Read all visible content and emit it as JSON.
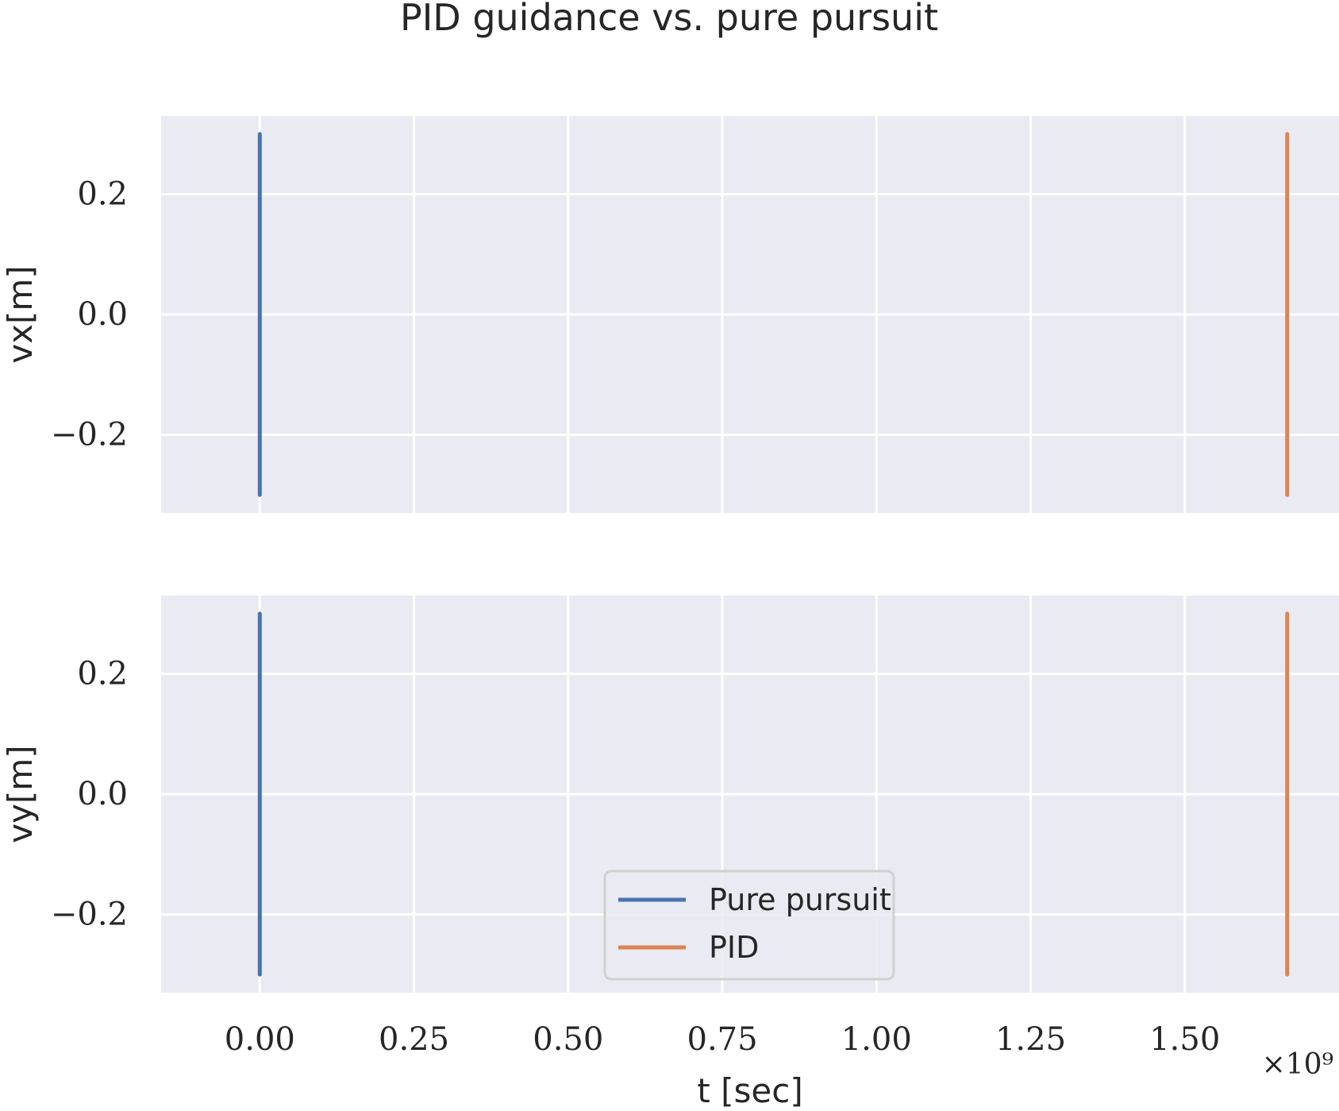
{
  "chart_data": [
    {
      "type": "line",
      "title": "PID guidance vs. pure pursuit",
      "xlabel": "t [sec]",
      "x_offset_label": "×10⁹",
      "ylabel": "vx[m]",
      "xlim": [
        -0.16,
        1.75
      ],
      "ylim": [
        -0.33,
        0.33
      ],
      "xticks": [
        0.0,
        0.25,
        0.5,
        0.75,
        1.0,
        1.25,
        1.5
      ],
      "xtick_labels": [
        "0.00",
        "0.25",
        "0.50",
        "0.75",
        "1.00",
        "1.25",
        "1.50"
      ],
      "yticks": [
        -0.2,
        0.0,
        0.2
      ],
      "ytick_labels": [
        "−0.2",
        "0.0",
        "0.2"
      ],
      "grid": true,
      "series": [
        {
          "name": "Pure pursuit",
          "color": "#4c72b0",
          "x": [
            0.0,
            0.0
          ],
          "y": [
            -0.3,
            0.3
          ]
        },
        {
          "name": "PID",
          "color": "#dd8452",
          "x": [
            1.666,
            1.666
          ],
          "y": [
            -0.3,
            0.3
          ]
        }
      ]
    },
    {
      "type": "line",
      "xlabel": "t [sec]",
      "ylabel": "vy[m]",
      "xlim": [
        -0.16,
        1.75
      ],
      "ylim": [
        -0.33,
        0.33
      ],
      "xticks": [
        0.0,
        0.25,
        0.5,
        0.75,
        1.0,
        1.25,
        1.5
      ],
      "xtick_labels": [
        "0.00",
        "0.25",
        "0.50",
        "0.75",
        "1.00",
        "1.25",
        "1.50"
      ],
      "yticks": [
        -0.2,
        0.0,
        0.2
      ],
      "ytick_labels": [
        "−0.2",
        "0.0",
        "0.2"
      ],
      "grid": true,
      "legend": "lower-center",
      "series": [
        {
          "name": "Pure pursuit",
          "color": "#4c72b0",
          "x": [
            0.0,
            0.0
          ],
          "y": [
            -0.3,
            0.3
          ]
        },
        {
          "name": "PID",
          "color": "#dd8452",
          "x": [
            1.666,
            1.666
          ],
          "y": [
            -0.3,
            0.3
          ]
        }
      ]
    }
  ]
}
